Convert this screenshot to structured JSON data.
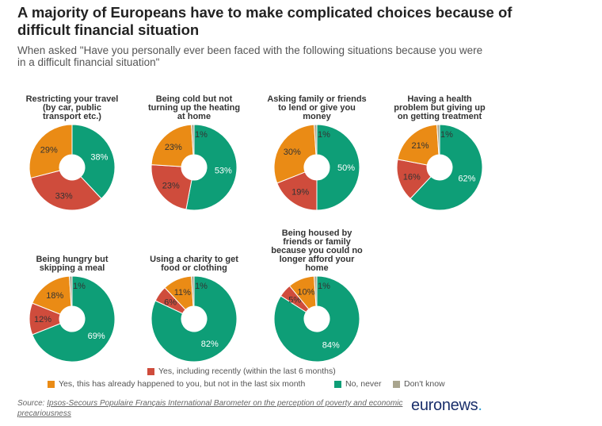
{
  "header": {
    "title": "A majority of Europeans have to make complicated choices because of difficult financial situation",
    "subtitle": "When asked \"Have you personally ever been faced with the following situations because you were in a difficult financial situation\""
  },
  "colors": {
    "yes_recent": "#cf4c3c",
    "yes_past": "#ea8b15",
    "no_never": "#0e9e77",
    "dont_know": "#a9a58e"
  },
  "legend": {
    "yes_recent": "Yes, including recently (within the last 6 months)",
    "yes_past": "Yes, this has already happened to you, but not in the last six month",
    "no_never": "No, never",
    "dont_know": "Don't know"
  },
  "source": {
    "prefix": "Source:",
    "text": "Ipsos-Secours Populaire Français International Barometer on the perception of poverty and economic precariousness"
  },
  "brand": {
    "name": "euronews",
    "dot": "."
  },
  "chart_data": [
    {
      "type": "pie",
      "title": "Restricting your travel (by car, public transport etc.)",
      "labels": [
        "No, never",
        "Yes, including recently (within the last 6 months)",
        "Yes, this has already happened to you, but not in the last six month",
        "Don't know"
      ],
      "values": [
        38,
        33,
        29,
        0
      ],
      "value_labels": [
        "38%",
        "33%",
        "29%",
        ""
      ]
    },
    {
      "type": "pie",
      "title": "Being cold but not turning up the heating at home",
      "labels": [
        "No, never",
        "Yes, including recently (within the last 6 months)",
        "Yes, this has already happened to you, but not in the last six month",
        "Don't know"
      ],
      "values": [
        53,
        23,
        23,
        1
      ],
      "value_labels": [
        "53%",
        "23%",
        "23%",
        "1%"
      ]
    },
    {
      "type": "pie",
      "title": "Asking family or friends to lend or give you money",
      "labels": [
        "No, never",
        "Yes, including recently (within the last 6 months)",
        "Yes, this has already happened to you, but not in the last six month",
        "Don't know"
      ],
      "values": [
        50,
        19,
        30,
        1
      ],
      "value_labels": [
        "50%",
        "19%",
        "30%",
        "1%"
      ]
    },
    {
      "type": "pie",
      "title": "Having a health problem but giving up on getting treatment",
      "labels": [
        "No, never",
        "Yes, including recently (within the last 6 months)",
        "Yes, this has already happened to you, but not in the last six month",
        "Don't know"
      ],
      "values": [
        62,
        16,
        21,
        1
      ],
      "value_labels": [
        "62%",
        "16%",
        "21%",
        "1%"
      ]
    },
    {
      "type": "pie",
      "title": "Being hungry but skipping a meal",
      "labels": [
        "No, never",
        "Yes, including recently (within the last 6 months)",
        "Yes, this has already happened to you, but not in the last six month",
        "Don't know"
      ],
      "values": [
        69,
        12,
        18,
        1
      ],
      "value_labels": [
        "69%",
        "12%",
        "18%",
        "1%"
      ]
    },
    {
      "type": "pie",
      "title": "Using a charity to get food or clothing",
      "labels": [
        "No, never",
        "Yes, including recently (within the last 6 months)",
        "Yes, this has already happened to you, but not in the last six month",
        "Don't know"
      ],
      "values": [
        82,
        6,
        11,
        1
      ],
      "value_labels": [
        "82%",
        "6%",
        "11%",
        "1%"
      ]
    },
    {
      "type": "pie",
      "title": "Being housed by friends or family because you could no longer afford your home",
      "labels": [
        "No, never",
        "Yes, including recently (within the last 6 months)",
        "Yes, this has already happened to you, but not in the last six month",
        "Don't know"
      ],
      "values": [
        84,
        5,
        10,
        1
      ],
      "value_labels": [
        "84%",
        "5%",
        "10%",
        "1%"
      ]
    }
  ]
}
